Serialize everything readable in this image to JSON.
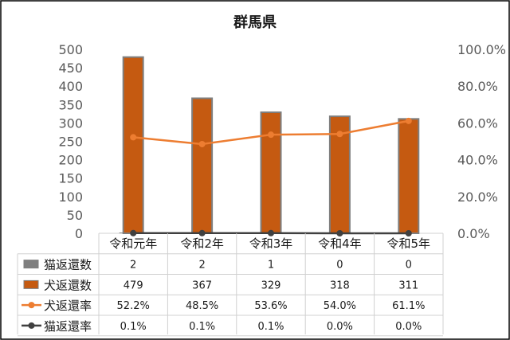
{
  "chart_data": {
    "type": "bar",
    "title": "群馬県",
    "categories": [
      "令和元年",
      "令和2年",
      "令和3年",
      "令和4年",
      "令和5年"
    ],
    "series": [
      {
        "name": "猫返還数",
        "kind": "bar",
        "axis": "left",
        "color": "#7f7f7f",
        "values": [
          2,
          2,
          1,
          0,
          0
        ],
        "labels": [
          "2",
          "2",
          "1",
          "0",
          "0"
        ]
      },
      {
        "name": "犬返還数",
        "kind": "bar",
        "axis": "left",
        "color": "#c55a11",
        "values": [
          479,
          367,
          329,
          318,
          311
        ],
        "labels": [
          "479",
          "367",
          "329",
          "318",
          "311"
        ]
      },
      {
        "name": "犬返還率",
        "kind": "line",
        "axis": "right",
        "color": "#ed7d31",
        "values": [
          52.2,
          48.5,
          53.6,
          54.0,
          61.1
        ],
        "labels": [
          "52.2%",
          "48.5%",
          "53.6%",
          "54.0%",
          "61.1%"
        ]
      },
      {
        "name": "猫返還率",
        "kind": "line",
        "axis": "right",
        "color": "#404040",
        "values": [
          0.1,
          0.1,
          0.1,
          0.0,
          0.0
        ],
        "labels": [
          "0.1%",
          "0.1%",
          "0.1%",
          "0.0%",
          "0.0%"
        ]
      }
    ],
    "y_left": {
      "ylim": [
        0,
        500
      ],
      "ticks": [
        "0",
        "50",
        "100",
        "150",
        "200",
        "250",
        "300",
        "350",
        "400",
        "450",
        "500"
      ]
    },
    "y_right": {
      "ylim": [
        0,
        100
      ],
      "ticks": [
        "0.0%",
        "20.0%",
        "40.0%",
        "60.0%",
        "80.0%",
        "100.0%"
      ]
    },
    "grid": false,
    "legend": "data-table"
  }
}
